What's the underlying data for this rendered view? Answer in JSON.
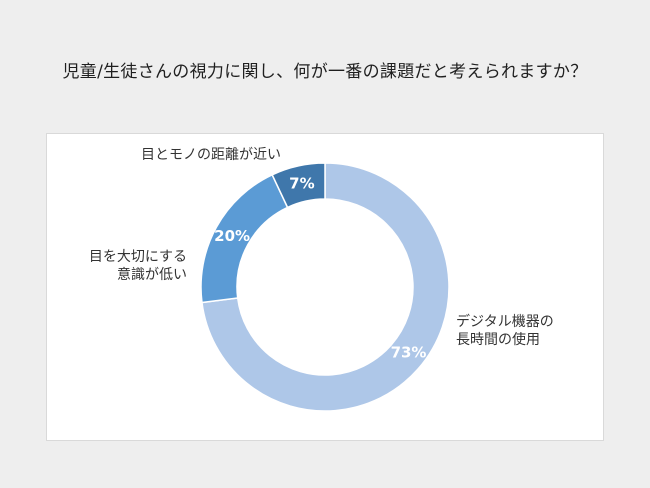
{
  "title": "児童/生徒さんの視力に関し、何が一番の課題だと考えられますか？",
  "chart_data": {
    "type": "pie",
    "donut": true,
    "unit": "%",
    "categories": [
      "デジタル機器の長時間の使用",
      "目を大切にする意識が低い",
      "目とモノの距離が近い"
    ],
    "values": [
      73,
      20,
      7
    ],
    "colors": [
      "#aec7e8",
      "#5b9bd5",
      "#3f77ab"
    ],
    "value_labels": [
      "73%",
      "20%",
      "7%"
    ],
    "category_label_lines": [
      [
        "デジタル機器の",
        "長時間の使用"
      ],
      [
        "目を大切にする",
        "意識が低い"
      ],
      [
        "目とモノの距離が近い"
      ]
    ],
    "start_angle_deg": 0,
    "direction": "clockwise",
    "legend": "none"
  }
}
